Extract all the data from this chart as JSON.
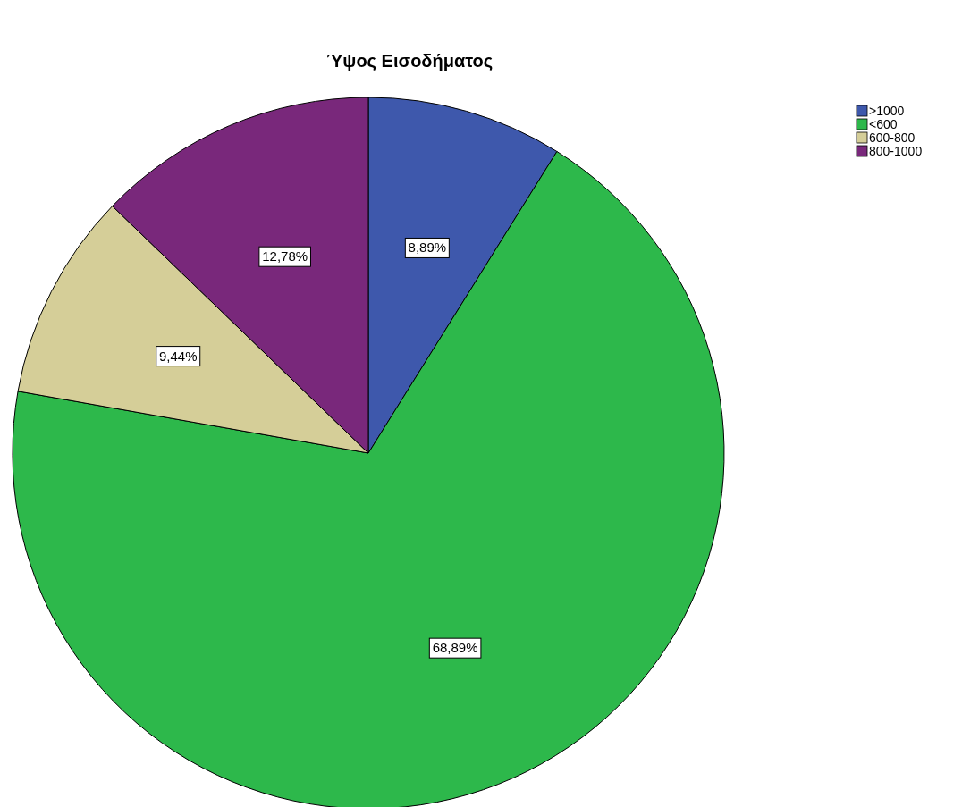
{
  "chart_data": {
    "type": "pie",
    "title": "Ύψος Εισοδήματος",
    "categories": [
      ">1000",
      "<600",
      "600-800",
      "800-1000"
    ],
    "values": [
      8.89,
      68.89,
      9.44,
      12.78
    ],
    "colors": [
      "#3e58ac",
      "#2db84b",
      "#d5ce98",
      "#79287b"
    ],
    "value_labels": [
      "8,89%",
      "68,89%",
      "9,44%",
      "12,78%"
    ],
    "legend": "top right"
  }
}
